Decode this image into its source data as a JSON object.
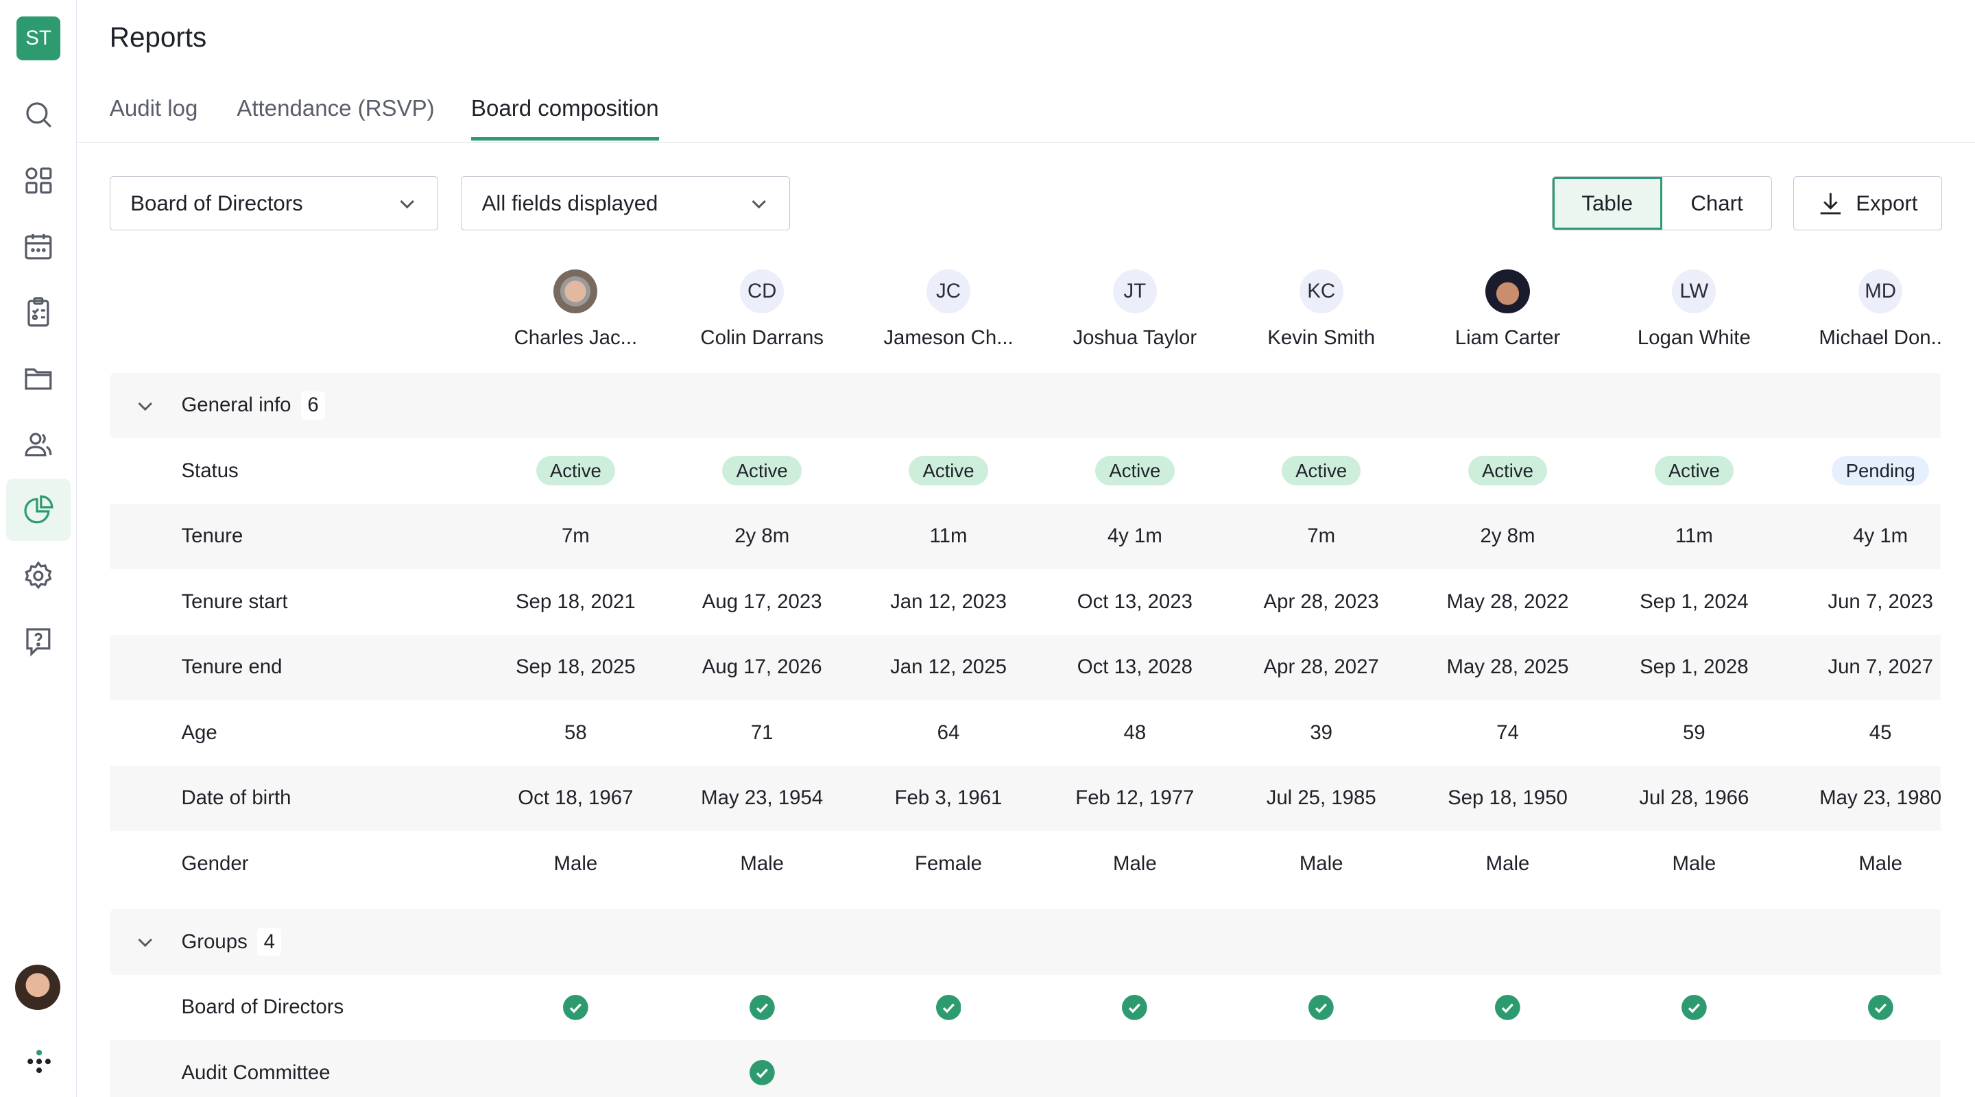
{
  "app": {
    "logo": "ST",
    "title": "Reports",
    "accent": "#2d9b6f"
  },
  "sidebar": {
    "items": [
      {
        "icon": "search-icon"
      },
      {
        "icon": "dashboard-icon"
      },
      {
        "icon": "calendar-icon"
      },
      {
        "icon": "checklist-icon"
      },
      {
        "icon": "folder-icon"
      },
      {
        "icon": "people-icon"
      },
      {
        "icon": "pie-chart-icon",
        "active": true
      },
      {
        "icon": "gear-icon"
      },
      {
        "icon": "help-icon"
      }
    ]
  },
  "tabs": [
    {
      "label": "Audit log"
    },
    {
      "label": "Attendance (RSVP)"
    },
    {
      "label": "Board composition",
      "active": true
    }
  ],
  "toolbar": {
    "group_select": "Board of Directors",
    "fields_select": "All fields displayed",
    "table": "Table",
    "chart": "Chart",
    "export": "Export"
  },
  "members": [
    {
      "name": "Charles Jac...",
      "initials": "",
      "photo": "photo1"
    },
    {
      "name": "Colin Darrans",
      "initials": "CD"
    },
    {
      "name": "Jameson Ch...",
      "initials": "JC"
    },
    {
      "name": "Joshua Taylor",
      "initials": "JT"
    },
    {
      "name": "Kevin Smith",
      "initials": "KC"
    },
    {
      "name": "Liam Carter",
      "initials": "",
      "photo": "photo2"
    },
    {
      "name": "Logan White",
      "initials": "LW"
    },
    {
      "name": "Michael Don..",
      "initials": "MD"
    }
  ],
  "sections": [
    {
      "title": "General info",
      "count": "6",
      "rows": [
        {
          "label": "Status",
          "type": "badge",
          "values": [
            "Active",
            "Active",
            "Active",
            "Active",
            "Active",
            "Active",
            "Active",
            "Pending"
          ]
        },
        {
          "label": "Tenure",
          "values": [
            "7m",
            "2y 8m",
            "11m",
            "4y 1m",
            "7m",
            "2y 8m",
            "11m",
            "4y 1m"
          ]
        },
        {
          "label": "Tenure start",
          "values": [
            "Sep 18, 2021",
            "Aug 17, 2023",
            "Jan 12, 2023",
            "Oct 13, 2023",
            "Apr 28, 2023",
            "May 28, 2022",
            "Sep 1, 2024",
            "Jun 7, 2023"
          ]
        },
        {
          "label": "Tenure end",
          "values": [
            "Sep 18, 2025",
            "Aug 17, 2026",
            "Jan 12, 2025",
            "Oct 13, 2028",
            "Apr 28, 2027",
            "May 28, 2025",
            "Sep 1, 2028",
            "Jun 7, 2027"
          ]
        },
        {
          "label": "Age",
          "values": [
            "58",
            "71",
            "64",
            "48",
            "39",
            "74",
            "59",
            "45"
          ]
        },
        {
          "label": "Date of birth",
          "values": [
            "Oct 18, 1967",
            "May 23, 1954",
            "Feb 3, 1961",
            "Feb 12, 1977",
            "Jul 25, 1985",
            "Sep 18, 1950",
            "Jul 28, 1966",
            "May 23, 1980"
          ]
        },
        {
          "label": "Gender",
          "values": [
            "Male",
            "Male",
            "Female",
            "Male",
            "Male",
            "Male",
            "Male",
            "Male"
          ]
        }
      ]
    },
    {
      "title": "Groups",
      "count": "4",
      "rows": [
        {
          "label": "Board of Directors",
          "type": "check",
          "values": [
            true,
            true,
            true,
            true,
            true,
            true,
            true,
            true
          ]
        },
        {
          "label": "Audit Committee",
          "type": "check",
          "values": [
            false,
            true,
            false,
            false,
            false,
            false,
            false,
            false
          ]
        }
      ]
    }
  ]
}
